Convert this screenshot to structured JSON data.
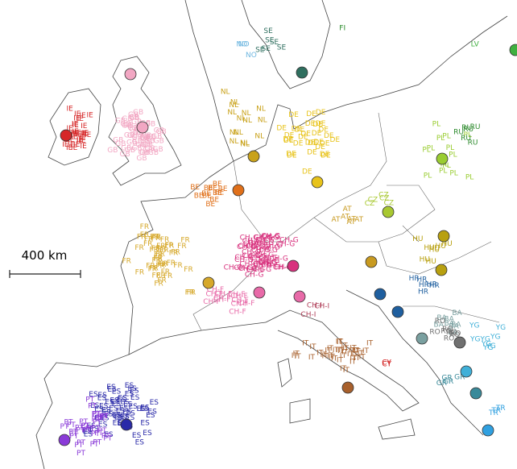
{
  "scale_bar": {
    "label": "400 km"
  },
  "groups": [
    {
      "code": "IE",
      "color": "#d62728"
    },
    {
      "code": "GB",
      "color": "#f2a7c3"
    },
    {
      "code": "NO",
      "color": "#6fb7e0"
    },
    {
      "code": "SE",
      "color": "#2f6f5f"
    },
    {
      "code": "DE",
      "color": "#e8c31a"
    },
    {
      "code": "NL",
      "color": "#c9a21a"
    },
    {
      "code": "BE",
      "color": "#e0701a"
    },
    {
      "code": "FR",
      "color": "#d6a82a"
    },
    {
      "code": "CH-G",
      "color": "#d8327e"
    },
    {
      "code": "CH-F",
      "color": "#e86aa8"
    },
    {
      "code": "CH-I",
      "color": "#b0405a"
    },
    {
      "code": "IT",
      "color": "#a8602c"
    },
    {
      "code": "ES",
      "color": "#2a2aa8"
    },
    {
      "code": "PT",
      "color": "#8a3ad8"
    },
    {
      "code": "AT",
      "color": "#c89a20"
    },
    {
      "code": "CZ",
      "color": "#a8c830"
    },
    {
      "code": "PL",
      "color": "#9acd32"
    },
    {
      "code": "RU",
      "color": "#2e8b2e"
    },
    {
      "code": "HU",
      "color": "#b8a010"
    },
    {
      "code": "HR",
      "color": "#1f5f9f"
    },
    {
      "code": "BA",
      "color": "#7aa0a0"
    },
    {
      "code": "RO",
      "color": "#707070"
    },
    {
      "code": "YG",
      "color": "#40b0d8"
    },
    {
      "code": "GR",
      "color": "#3a8a9a"
    },
    {
      "code": "CY",
      "color": "#d01010"
    },
    {
      "code": "TR",
      "color": "#30a0e0"
    },
    {
      "code": "LV",
      "color": "#40b040"
    },
    {
      "code": "FI",
      "color": "#2a8a2a"
    }
  ]
}
